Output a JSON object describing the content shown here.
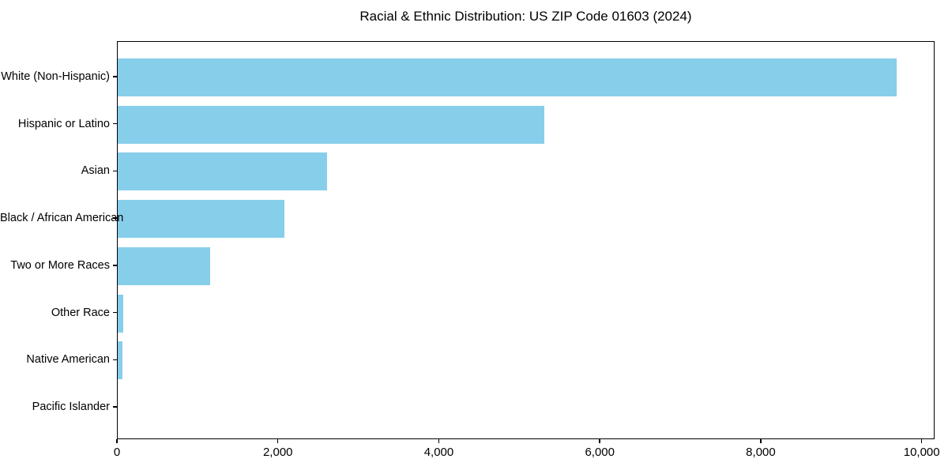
{
  "page": {
    "background_color": "#ffffff",
    "text_color": "#000000"
  },
  "chart_data": {
    "type": "bar",
    "orientation": "horizontal",
    "title": "Racial & Ethnic Distribution: US ZIP Code 01603 (2024)",
    "categories": [
      "White (Non-Hispanic)",
      "Hispanic or Latino",
      "Asian",
      "Black / African American",
      "Two or More Races",
      "Other Race",
      "Native American",
      "Pacific Islander"
    ],
    "values": [
      9675,
      5300,
      2600,
      2070,
      1150,
      70,
      55,
      0
    ],
    "xlabel": "",
    "ylabel": "",
    "x_ticks": [
      0,
      2000,
      4000,
      6000,
      8000,
      10000
    ],
    "x_tick_labels": [
      "0",
      "2,000",
      "4,000",
      "6,000",
      "8,000",
      "10,000"
    ],
    "xlim": [
      0,
      10160
    ],
    "bar_color": "#87CEEB",
    "spine_color": "#000000",
    "grid": false,
    "legend": null
  }
}
